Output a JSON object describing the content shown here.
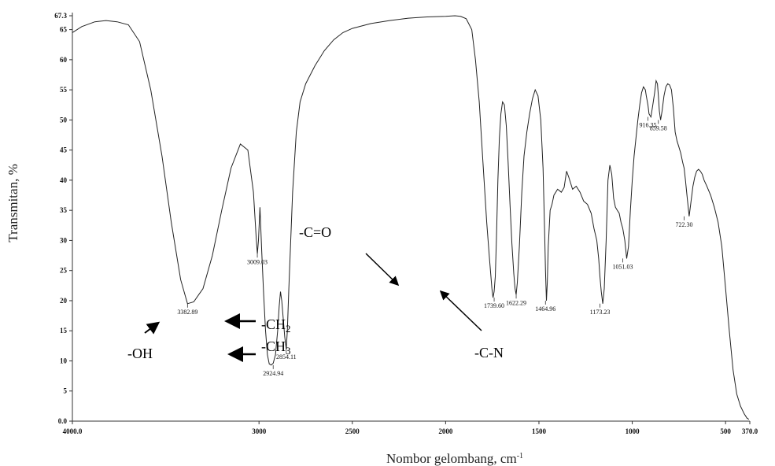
{
  "chart_data": {
    "type": "line",
    "xlabel": "Nombor gelombang, cm",
    "xlabel_sup": "-1",
    "ylabel": "Transmitan, %",
    "xlim": [
      4000.0,
      370.0
    ],
    "ylim": [
      0.0,
      67.3
    ],
    "x_tick_labels": [
      "4000.0",
      "3000",
      "2500",
      "2000",
      "1500",
      "1000",
      "500",
      "370.0"
    ],
    "y_tick_labels": [
      "67.3",
      "65",
      "60",
      "55",
      "50",
      "45",
      "40",
      "35",
      "30",
      "25",
      "20",
      "15",
      "10",
      "5",
      "0.0"
    ],
    "series": [
      {
        "x": [
          4000,
          3950,
          3880,
          3820,
          3760,
          3700,
          3640,
          3580,
          3520,
          3470,
          3420,
          3383,
          3350,
          3300,
          3250,
          3200,
          3150,
          3100,
          3060,
          3030,
          3015,
          3009,
          3003,
          2995,
          2985,
          2975,
          2965,
          2955,
          2945,
          2935,
          2924,
          2912,
          2900,
          2892,
          2885,
          2878,
          2870,
          2862,
          2854,
          2848,
          2840,
          2820,
          2800,
          2780,
          2750,
          2700,
          2650,
          2600,
          2550,
          2500,
          2450,
          2400,
          2300,
          2200,
          2100,
          2000,
          1950,
          1920,
          1890,
          1860,
          1840,
          1820,
          1800,
          1780,
          1765,
          1752,
          1746,
          1740,
          1734,
          1728,
          1720,
          1712,
          1704,
          1695,
          1685,
          1675,
          1665,
          1655,
          1645,
          1635,
          1628,
          1622,
          1616,
          1605,
          1592,
          1580,
          1565,
          1550,
          1535,
          1520,
          1505,
          1490,
          1478,
          1470,
          1465,
          1460,
          1455,
          1450,
          1440,
          1430,
          1420,
          1400,
          1380,
          1365,
          1352,
          1340,
          1320,
          1300,
          1280,
          1260,
          1240,
          1220,
          1205,
          1190,
          1180,
          1173,
          1166,
          1158,
          1150,
          1140,
          1130,
          1120,
          1110,
          1100,
          1090,
          1080,
          1070,
          1060,
          1051,
          1040,
          1030,
          1020,
          1010,
          1000,
          990,
          980,
          970,
          960,
          950,
          940,
          930,
          925,
          916,
          910,
          900,
          890,
          880,
          872,
          865,
          860,
          855,
          848,
          840,
          830,
          820,
          810,
          800,
          790,
          780,
          770,
          760,
          750,
          740,
          730,
          722,
          715,
          705,
          695,
          685,
          675,
          665,
          655,
          645,
          635,
          625,
          615,
          600,
          580,
          560,
          540,
          520,
          500,
          480,
          460,
          440,
          420,
          400,
          385,
          375
        ],
        "y": [
          64.5,
          65.5,
          66.3,
          66.5,
          66.3,
          65.8,
          63.0,
          55.0,
          44.0,
          33.0,
          23.5,
          19.5,
          19.8,
          22.0,
          27.5,
          35.0,
          42.0,
          46.0,
          45.0,
          38.0,
          30.5,
          27.8,
          30.0,
          35.5,
          28.0,
          21.0,
          15.0,
          11.0,
          9.5,
          9.3,
          9.6,
          11.0,
          15.0,
          19.0,
          21.5,
          20.0,
          17.0,
          14.0,
          12.0,
          15.0,
          22.0,
          38.0,
          48.0,
          53.0,
          56.0,
          59.0,
          61.5,
          63.3,
          64.5,
          65.2,
          65.6,
          66.0,
          66.5,
          66.9,
          67.1,
          67.2,
          67.3,
          67.2,
          66.8,
          65.0,
          60.0,
          53.0,
          43.0,
          33.0,
          27.0,
          22.0,
          20.5,
          21.5,
          24.0,
          30.0,
          40.0,
          47.0,
          51.0,
          53.0,
          52.5,
          49.0,
          43.0,
          36.0,
          29.5,
          24.5,
          22.0,
          21.0,
          23.0,
          29.0,
          38.0,
          44.0,
          48.0,
          51.0,
          53.5,
          55.0,
          54.0,
          50.0,
          42.0,
          32.0,
          25.0,
          20.0,
          23.0,
          29.0,
          35.0,
          36.0,
          37.5,
          38.5,
          38.0,
          38.8,
          41.5,
          40.5,
          38.5,
          39.0,
          38.0,
          36.5,
          36.0,
          34.5,
          32.0,
          30.0,
          27.0,
          24.0,
          21.5,
          19.5,
          22.0,
          30.0,
          40.0,
          42.5,
          41.0,
          37.0,
          35.5,
          35.0,
          34.5,
          33.0,
          32.0,
          30.0,
          27.0,
          29.0,
          35.0,
          40.0,
          44.0,
          47.0,
          50.0,
          52.5,
          54.5,
          55.5,
          55.0,
          54.0,
          52.5,
          51.0,
          50.5,
          52.5,
          54.5,
          56.5,
          56.0,
          54.0,
          51.5,
          50.0,
          51.5,
          54.0,
          55.5,
          56.0,
          55.8,
          55.0,
          52.0,
          48.0,
          46.5,
          45.5,
          44.5,
          43.0,
          42.0,
          40.0,
          37.0,
          34.0,
          36.5,
          39.0,
          40.5,
          41.5,
          41.8,
          41.5,
          41.0,
          40.0,
          39.0,
          37.5,
          35.5,
          33.0,
          29.0,
          22.0,
          15.0,
          8.5,
          4.5,
          2.5,
          1.2,
          0.5,
          0.3
        ]
      }
    ],
    "peak_labels": [
      {
        "x": 3383,
        "y": 19.5,
        "text": "3382.89"
      },
      {
        "x": 3009,
        "y": 27.8,
        "text": "3009.03"
      },
      {
        "x": 2924,
        "y": 9.3,
        "text": "2924.94"
      },
      {
        "x": 2854,
        "y": 12.0,
        "text": "2854.11"
      },
      {
        "x": 1740,
        "y": 20.5,
        "text": "1739.60"
      },
      {
        "x": 1622,
        "y": 21.0,
        "text": "1622.29"
      },
      {
        "x": 1465,
        "y": 20.0,
        "text": "1464.96"
      },
      {
        "x": 1173,
        "y": 19.5,
        "text": "1173.23"
      },
      {
        "x": 1051,
        "y": 27.0,
        "text": "1051.03"
      },
      {
        "x": 916,
        "y": 50.5,
        "text": "916.35"
      },
      {
        "x": 860,
        "y": 50.0,
        "text": "859.58"
      },
      {
        "x": 722,
        "y": 34.0,
        "text": "722.30"
      }
    ],
    "annotations": [
      {
        "text": "-OH"
      },
      {
        "text": "-CH",
        "sub": "2"
      },
      {
        "text": "-CH",
        "sub": "3"
      },
      {
        "text": "-C=O"
      },
      {
        "text": "-C-N"
      }
    ],
    "grid": false,
    "legend": "none"
  }
}
